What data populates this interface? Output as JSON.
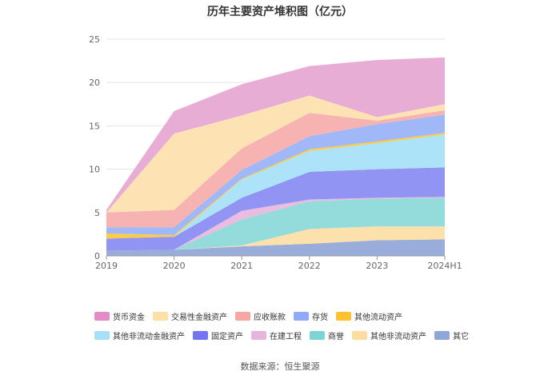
{
  "source_text": "数据来源：恒生聚源",
  "chart_data": {
    "type": "area",
    "title": "历年主要资产堆积图（亿元）",
    "xlabel": "",
    "ylabel": "",
    "categories": [
      "2019",
      "2020",
      "2021",
      "2022",
      "2023",
      "2024H1"
    ],
    "ylim": [
      0,
      25
    ],
    "yticks": [
      0,
      5,
      10,
      15,
      20,
      25
    ],
    "grid": true,
    "legend_position": "bottom",
    "series": [
      {
        "name": "其它",
        "color": "#92A9D8",
        "values": [
          0.6,
          0.7,
          1.1,
          1.4,
          1.8,
          1.9
        ]
      },
      {
        "name": "其他非流动资产",
        "color": "#FDDFA8",
        "values": [
          0.0,
          0.0,
          0.1,
          1.7,
          1.6,
          1.5
        ]
      },
      {
        "name": "商誉",
        "color": "#8ED9D9",
        "values": [
          0.0,
          0.0,
          3.0,
          3.2,
          3.2,
          3.3
        ]
      },
      {
        "name": "在建工程",
        "color": "#E9B8DE",
        "values": [
          0.0,
          0.0,
          1.0,
          0.2,
          0.1,
          0.1
        ]
      },
      {
        "name": "固定资产",
        "color": "#8C8EF2",
        "values": [
          1.4,
          1.5,
          1.5,
          3.2,
          3.3,
          3.4
        ]
      },
      {
        "name": "其他非流动金融资产",
        "color": "#A8E2F9",
        "values": [
          0.0,
          0.0,
          2.1,
          2.4,
          3.0,
          3.8
        ]
      },
      {
        "name": "其他流动资产",
        "color": "#FCC93E",
        "values": [
          0.6,
          0.2,
          0.1,
          0.2,
          0.2,
          0.2
        ]
      },
      {
        "name": "存货",
        "color": "#9BB4F8",
        "values": [
          0.7,
          0.9,
          1.0,
          1.5,
          2.0,
          2.1
        ]
      },
      {
        "name": "应收账款",
        "color": "#F7AFAE",
        "values": [
          1.7,
          2.0,
          2.5,
          2.7,
          0.4,
          0.5
        ]
      },
      {
        "name": "交易性金融资产",
        "color": "#FDE2B0",
        "values": [
          0.0,
          8.8,
          3.8,
          2.0,
          0.4,
          0.7
        ]
      },
      {
        "name": "货币资金",
        "color": "#E6A9D3",
        "values": [
          0.3,
          2.6,
          3.6,
          3.4,
          6.6,
          5.4
        ]
      }
    ]
  },
  "legend": {
    "rows": [
      [
        {
          "label": "货币资金",
          "color": "#E38CC8"
        },
        {
          "label": "交易性金融资产",
          "color": "#FDDFA8"
        },
        {
          "label": "应收账款",
          "color": "#F8A6A4"
        },
        {
          "label": "存货",
          "color": "#8FAAF7"
        },
        {
          "label": "其他流动资产",
          "color": "#FCC230"
        }
      ],
      [
        {
          "label": "其他非流动金融资产",
          "color": "#A6E0F8"
        },
        {
          "label": "固定资产",
          "color": "#7375F0"
        },
        {
          "label": "在建工程",
          "color": "#E7B5DC"
        },
        {
          "label": "商誉",
          "color": "#7ED4D4"
        },
        {
          "label": "其他非流动资产",
          "color": "#FDDCA2"
        },
        {
          "label": "其它",
          "color": "#8FA6D8"
        }
      ]
    ]
  }
}
